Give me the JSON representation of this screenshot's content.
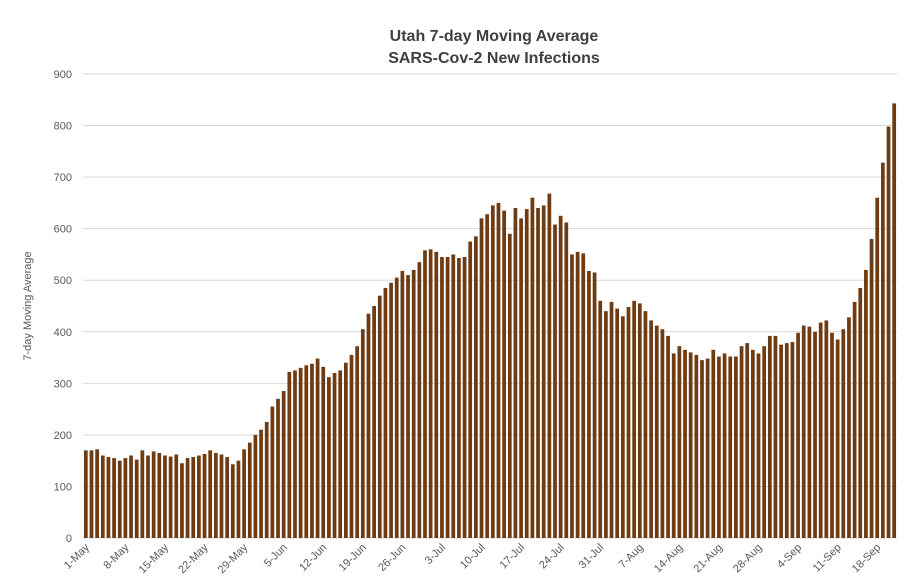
{
  "chart_data": {
    "type": "bar",
    "title": "Utah 7-day Moving Average",
    "subtitle": "SARS-Cov-2 New Infections",
    "y_label": "7-day Moving Average",
    "color": "#6e3b13",
    "grid": true,
    "ylim": [
      0,
      900
    ],
    "yticks": [
      0,
      100,
      200,
      300,
      400,
      500,
      600,
      700,
      800,
      900
    ],
    "categories": [
      "1-May",
      null,
      null,
      null,
      null,
      null,
      null,
      "8-May",
      null,
      null,
      null,
      null,
      null,
      null,
      "15-May",
      null,
      null,
      null,
      null,
      null,
      null,
      "22-May",
      null,
      null,
      null,
      null,
      null,
      null,
      "29-May",
      null,
      null,
      null,
      null,
      null,
      null,
      "5-Jun",
      null,
      null,
      null,
      null,
      null,
      null,
      "12-Jun",
      null,
      null,
      null,
      null,
      null,
      null,
      "19-Jun",
      null,
      null,
      null,
      null,
      null,
      null,
      "26-Jun",
      null,
      null,
      null,
      null,
      null,
      null,
      "3-Jul",
      null,
      null,
      null,
      null,
      null,
      null,
      "10-Jul",
      null,
      null,
      null,
      null,
      null,
      null,
      "17-Jul",
      null,
      null,
      null,
      null,
      null,
      null,
      "24-Jul",
      null,
      null,
      null,
      null,
      null,
      null,
      "31-Jul",
      null,
      null,
      null,
      null,
      null,
      null,
      "7-Aug",
      null,
      null,
      null,
      null,
      null,
      null,
      "14-Aug",
      null,
      null,
      null,
      null,
      null,
      null,
      "21-Aug",
      null,
      null,
      null,
      null,
      null,
      null,
      "28-Aug",
      null,
      null,
      null,
      null,
      null,
      null,
      "4-Sep",
      null,
      null,
      null,
      null,
      null,
      null,
      "11-Sep",
      null,
      null,
      null,
      null,
      null,
      null,
      "18-Sep",
      null,
      null,
      null
    ],
    "values": [
      170,
      170,
      172,
      160,
      157,
      155,
      150,
      155,
      160,
      152,
      170,
      160,
      168,
      165,
      160,
      158,
      162,
      145,
      155,
      157,
      160,
      163,
      170,
      165,
      162,
      157,
      143,
      150,
      172,
      185,
      200,
      210,
      225,
      255,
      270,
      285,
      322,
      325,
      330,
      335,
      338,
      348,
      332,
      312,
      320,
      325,
      340,
      355,
      372,
      405,
      435,
      450,
      470,
      485,
      495,
      505,
      518,
      510,
      520,
      535,
      558,
      560,
      555,
      545,
      545,
      550,
      543,
      545,
      575,
      585,
      620,
      628,
      645,
      650,
      635,
      590,
      640,
      620,
      638,
      660,
      640,
      645,
      668,
      608,
      625,
      612,
      550,
      555,
      552,
      518,
      515,
      460,
      440,
      458,
      445,
      430,
      448,
      460,
      455,
      440,
      422,
      412,
      405,
      392,
      358,
      372,
      365,
      360,
      355,
      345,
      348,
      365,
      352,
      358,
      352,
      352,
      372,
      378,
      365,
      358,
      372,
      392,
      392,
      375,
      378,
      380,
      398,
      412,
      410,
      400,
      418,
      422,
      398,
      385,
      405,
      428,
      458,
      485,
      520,
      580,
      660,
      728,
      798,
      843
    ]
  }
}
